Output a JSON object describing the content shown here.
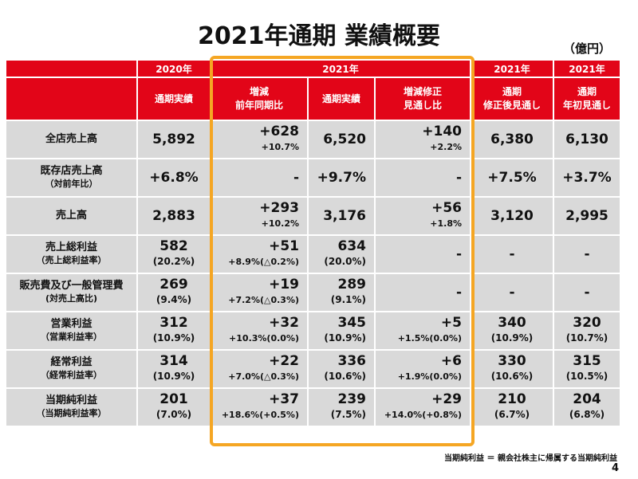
{
  "title": "2021年通期 業績概要",
  "unit": "（億円）",
  "header": {
    "y2020": "2020年",
    "y2021": "2021年",
    "y2021b": "2021年",
    "y2021c": "2021年",
    "col_actual2020": "通期実績",
    "col_yoy": "増減\n前年同期比",
    "col_actual2021": "通期実績",
    "col_vs_revised": "増減修正\n見通し比",
    "col_revised": "通期\n修正後見通し",
    "col_initial": "通期\n年初見通し"
  },
  "rows": [
    {
      "label": "全店売上高",
      "sub": "",
      "a2020": "5,892",
      "a2020s": "",
      "yoy": "+628",
      "yoys": "+10.7%",
      "a2021": "6,520",
      "a2021s": "",
      "vsr": "+140",
      "vsrs": "+2.2%",
      "rev": "6,380",
      "revs": "",
      "ini": "6,130",
      "inis": ""
    },
    {
      "label": "既存店売上高",
      "sub": "（対前年比）",
      "a2020": "+6.8%",
      "a2020s": "",
      "yoy": "-",
      "yoys": "",
      "a2021": "+9.7%",
      "a2021s": "",
      "vsr": "-",
      "vsrs": "",
      "rev": "+7.5%",
      "revs": "",
      "ini": "+3.7%",
      "inis": ""
    },
    {
      "label": "売上高",
      "sub": "",
      "a2020": "2,883",
      "a2020s": "",
      "yoy": "+293",
      "yoys": "+10.2%",
      "a2021": "3,176",
      "a2021s": "",
      "vsr": "+56",
      "vsrs": "+1.8%",
      "rev": "3,120",
      "revs": "",
      "ini": "2,995",
      "inis": ""
    },
    {
      "label": "売上総利益",
      "sub": "（売上総利益率）",
      "a2020": "582",
      "a2020s": "(20.2%)",
      "yoy": "+51",
      "yoys": "+8.9%(△0.2%)",
      "a2021": "634",
      "a2021s": "(20.0%)",
      "vsr": "-",
      "vsrs": "",
      "rev": "-",
      "revs": "",
      "ini": "-",
      "inis": ""
    },
    {
      "label": "販売費及び一般管理費",
      "sub": "(対売上高比)",
      "a2020": "269",
      "a2020s": "(9.4%)",
      "yoy": "+19",
      "yoys": "+7.2%(△0.3%)",
      "a2021": "289",
      "a2021s": "(9.1%)",
      "vsr": "-",
      "vsrs": "",
      "rev": "-",
      "revs": "",
      "ini": "-",
      "inis": ""
    },
    {
      "label": "営業利益",
      "sub": "（営業利益率）",
      "a2020": "312",
      "a2020s": "(10.9%)",
      "yoy": "+32",
      "yoys": "+10.3%(0.0%)",
      "a2021": "345",
      "a2021s": "(10.9%)",
      "vsr": "+5",
      "vsrs": "+1.5%(0.0%)",
      "rev": "340",
      "revs": "(10.9%)",
      "ini": "320",
      "inis": "(10.7%)"
    },
    {
      "label": "経常利益",
      "sub": "（経常利益率）",
      "a2020": "314",
      "a2020s": "(10.9%)",
      "yoy": "+22",
      "yoys": "+7.0%(△0.3%)",
      "a2021": "336",
      "a2021s": "(10.6%)",
      "vsr": "+6",
      "vsrs": "+1.9%(0.0%)",
      "rev": "330",
      "revs": "(10.6%)",
      "ini": "315",
      "inis": "(10.5%)"
    },
    {
      "label": "当期純利益",
      "sub": "（当期純利益率）",
      "a2020": "201",
      "a2020s": "(7.0%)",
      "yoy": "+37",
      "yoys": "+18.6%(+0.5%)",
      "a2021": "239",
      "a2021s": "(7.5%)",
      "vsr": "+29",
      "vsrs": "+14.0%(+0.8%)",
      "rev": "210",
      "revs": "(6.7%)",
      "ini": "204",
      "inis": "(6.8%)"
    }
  ],
  "footnote": "当期純利益 ＝ 親会社株主に帰属する当期純利益",
  "page_number": "4",
  "colors": {
    "header_red": "#e20518",
    "cell_gray": "#d9d9d9",
    "highlight_orange": "#f5a623"
  }
}
